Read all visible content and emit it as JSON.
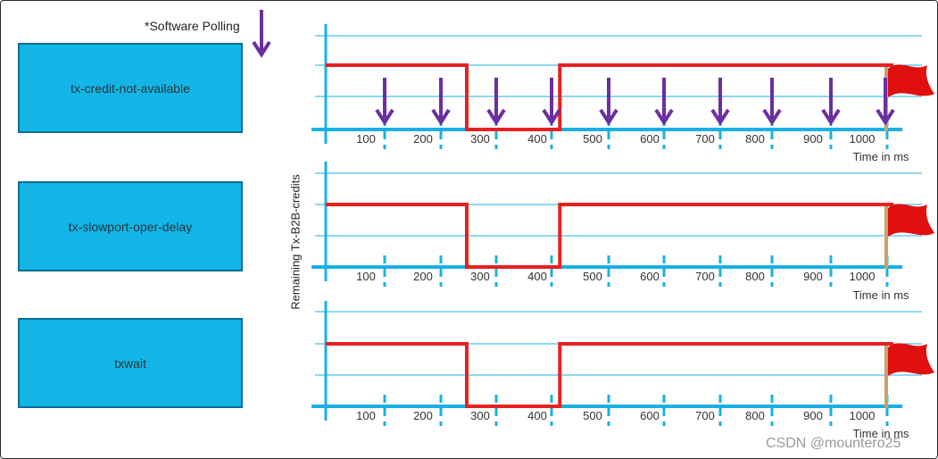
{
  "legend": {
    "label": "*Software Polling",
    "arrow_icon": "down-arrow-icon",
    "arrow_color": "#6b2fa0"
  },
  "y_axis_label": "Remaining Tx-B2B-credits",
  "x_axis_label": "Time in ms",
  "watermark": "CSDN @mountero25",
  "colors": {
    "axis": "#1ab0e3",
    "signal": "#e82020",
    "box_fill": "#12b5e6",
    "flag": "#e01010"
  },
  "panels": [
    {
      "metric": "tx-credit-not-available",
      "polling_arrows": true,
      "flag_icon": "red-flag-icon",
      "ticks": [
        "100",
        "200",
        "300",
        "400",
        "500",
        "600",
        "700",
        "800",
        "900",
        "1000"
      ],
      "x_label": "Time in ms"
    },
    {
      "metric": "tx-slowport-oper-delay",
      "polling_arrows": false,
      "flag_icon": "red-flag-icon",
      "ticks": [
        "100",
        "200",
        "300",
        "400",
        "500",
        "600",
        "700",
        "800",
        "900",
        "1000"
      ],
      "x_label": "Time in ms"
    },
    {
      "metric": "txwait",
      "polling_arrows": false,
      "flag_icon": "red-flag-icon",
      "ticks": [
        "100",
        "200",
        "300",
        "400",
        "500",
        "600",
        "700",
        "800",
        "900",
        "1000"
      ],
      "x_label": "Time in ms"
    }
  ],
  "signal_timeline_ms": {
    "high_until": 250,
    "zero_from": 250,
    "zero_until": 415,
    "high_after": 415,
    "end": 1000
  }
}
